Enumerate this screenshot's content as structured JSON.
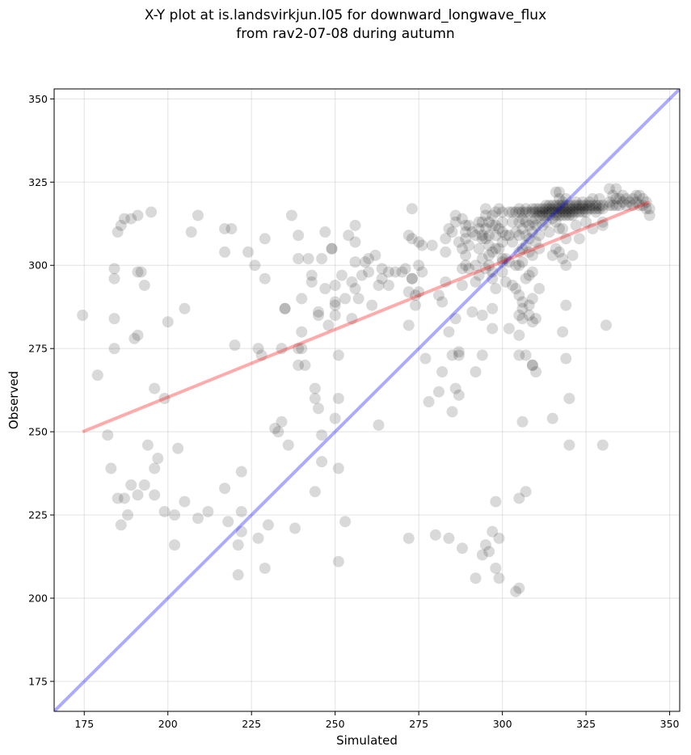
{
  "title_line1": "X-Y plot at is.landsvirkjun.l05 for downward_longwave_flux",
  "title_line2": "from rav2-07-08 during autumn",
  "chart_data": {
    "type": "scatter",
    "xlabel": "Simulated",
    "ylabel": "Observed",
    "xlim": [
      166,
      353
    ],
    "ylim": [
      166,
      353
    ],
    "xticks": [
      175,
      200,
      225,
      250,
      275,
      300,
      325,
      350
    ],
    "yticks": [
      175,
      200,
      225,
      250,
      275,
      300,
      325,
      350
    ],
    "grid": true,
    "point_color": "#000000",
    "identity_line": {
      "color": "#0000ff",
      "from": [
        166,
        166
      ],
      "to": [
        353,
        353
      ]
    },
    "fit_line": {
      "color": "#ff0000",
      "from": [
        174.5,
        250
      ],
      "to": [
        344,
        319
      ]
    },
    "points": [
      [
        174.5,
        285
      ],
      [
        179,
        267
      ],
      [
        182,
        249
      ],
      [
        183,
        239
      ],
      [
        184,
        299
      ],
      [
        184,
        296
      ],
      [
        184,
        284
      ],
      [
        184,
        275
      ],
      [
        185,
        310
      ],
      [
        185,
        230
      ],
      [
        186,
        312
      ],
      [
        186,
        222
      ],
      [
        187,
        314
      ],
      [
        187,
        230
      ],
      [
        188,
        225
      ],
      [
        189,
        234
      ],
      [
        189,
        314
      ],
      [
        190,
        278
      ],
      [
        191,
        279
      ],
      [
        191,
        298
      ],
      [
        191,
        315
      ],
      [
        191,
        231
      ],
      [
        192,
        298
      ],
      [
        193,
        294
      ],
      [
        193,
        234
      ],
      [
        194,
        246
      ],
      [
        195,
        316
      ],
      [
        196,
        263
      ],
      [
        196,
        239
      ],
      [
        196,
        231
      ],
      [
        197,
        242
      ],
      [
        199,
        260
      ],
      [
        199,
        226
      ],
      [
        200,
        283
      ],
      [
        202,
        216
      ],
      [
        202,
        225
      ],
      [
        203,
        245
      ],
      [
        205,
        287
      ],
      [
        205,
        229
      ],
      [
        207,
        310
      ],
      [
        209,
        224
      ],
      [
        209,
        315
      ],
      [
        212,
        226
      ],
      [
        217,
        304
      ],
      [
        217,
        311
      ],
      [
        217,
        233
      ],
      [
        218,
        223
      ],
      [
        219,
        311
      ],
      [
        220,
        276
      ],
      [
        221,
        207
      ],
      [
        221,
        216
      ],
      [
        222,
        220
      ],
      [
        222,
        226
      ],
      [
        222,
        238
      ],
      [
        224,
        304
      ],
      [
        226,
        300
      ],
      [
        227,
        275
      ],
      [
        227,
        218
      ],
      [
        228,
        273
      ],
      [
        229,
        308
      ],
      [
        229,
        296
      ],
      [
        229,
        209
      ],
      [
        230,
        222
      ],
      [
        232,
        251
      ],
      [
        233,
        250
      ],
      [
        234,
        253
      ],
      [
        234,
        275
      ],
      [
        235,
        287
      ],
      [
        235,
        287
      ],
      [
        236,
        246
      ],
      [
        237,
        315
      ],
      [
        238,
        221
      ],
      [
        239,
        302
      ],
      [
        239,
        309
      ],
      [
        239,
        275
      ],
      [
        239,
        270
      ],
      [
        240,
        290
      ],
      [
        240,
        280
      ],
      [
        240,
        275
      ],
      [
        241,
        270
      ],
      [
        242,
        302
      ],
      [
        243,
        295
      ],
      [
        243,
        297
      ],
      [
        244,
        263
      ],
      [
        244,
        260
      ],
      [
        244,
        232
      ],
      [
        245,
        286
      ],
      [
        245,
        285
      ],
      [
        245,
        257
      ],
      [
        246,
        302
      ],
      [
        246,
        249
      ],
      [
        246,
        241
      ],
      [
        247,
        293
      ],
      [
        247,
        310
      ],
      [
        248,
        282
      ],
      [
        249,
        305
      ],
      [
        249,
        305
      ],
      [
        250,
        294
      ],
      [
        250,
        289
      ],
      [
        250,
        288
      ],
      [
        250,
        285
      ],
      [
        250,
        254
      ],
      [
        251,
        273
      ],
      [
        251,
        239
      ],
      [
        251,
        211
      ],
      [
        251,
        260
      ],
      [
        252,
        297
      ],
      [
        253,
        223
      ],
      [
        253,
        290
      ],
      [
        254,
        309
      ],
      [
        255,
        295
      ],
      [
        255,
        284
      ],
      [
        256,
        312
      ],
      [
        256,
        307
      ],
      [
        256,
        301
      ],
      [
        256,
        293
      ],
      [
        257,
        290
      ],
      [
        258,
        297
      ],
      [
        259,
        301
      ],
      [
        260,
        302
      ],
      [
        260,
        298
      ],
      [
        261,
        288
      ],
      [
        262,
        303
      ],
      [
        263,
        294
      ],
      [
        263,
        252
      ],
      [
        264,
        296
      ],
      [
        264,
        299
      ],
      [
        266,
        294
      ],
      [
        266,
        298
      ],
      [
        268,
        298
      ],
      [
        270,
        298
      ],
      [
        271,
        299
      ],
      [
        272,
        218
      ],
      [
        272,
        309
      ],
      [
        272,
        292
      ],
      [
        272,
        282
      ],
      [
        273,
        308
      ],
      [
        273,
        317
      ],
      [
        273,
        296
      ],
      [
        273,
        296
      ],
      [
        274,
        291
      ],
      [
        274,
        288
      ],
      [
        275,
        292
      ],
      [
        275,
        300
      ],
      [
        275,
        307
      ],
      [
        276,
        298
      ],
      [
        276,
        306
      ],
      [
        277,
        272
      ],
      [
        278,
        259
      ],
      [
        279,
        306
      ],
      [
        280,
        219
      ],
      [
        281,
        291
      ],
      [
        281,
        262
      ],
      [
        282,
        289
      ],
      [
        282,
        268
      ],
      [
        283,
        308
      ],
      [
        283,
        304
      ],
      [
        283,
        295
      ],
      [
        284,
        311
      ],
      [
        284,
        280
      ],
      [
        284,
        218
      ],
      [
        285,
        256
      ],
      [
        285,
        310
      ],
      [
        285,
        273
      ],
      [
        286,
        315
      ],
      [
        286,
        313
      ],
      [
        286,
        284
      ],
      [
        286,
        263
      ],
      [
        287,
        274
      ],
      [
        287,
        307
      ],
      [
        287,
        273
      ],
      [
        287,
        261
      ],
      [
        288,
        215
      ],
      [
        288,
        299
      ],
      [
        288,
        294
      ],
      [
        288,
        314
      ],
      [
        288,
        305
      ],
      [
        289,
        312
      ],
      [
        289,
        310
      ],
      [
        289,
        308
      ],
      [
        289,
        303
      ],
      [
        289,
        300
      ],
      [
        290,
        299
      ],
      [
        290,
        306
      ],
      [
        290,
        312
      ],
      [
        291,
        286
      ],
      [
        291,
        310
      ],
      [
        292,
        300
      ],
      [
        292,
        309
      ],
      [
        292,
        295
      ],
      [
        292,
        268
      ],
      [
        292,
        206
      ],
      [
        293,
        313
      ],
      [
        293,
        311
      ],
      [
        293,
        305
      ],
      [
        293,
        297
      ],
      [
        294,
        313
      ],
      [
        294,
        309
      ],
      [
        294,
        308
      ],
      [
        294,
        302
      ],
      [
        294,
        285
      ],
      [
        294,
        273
      ],
      [
        294,
        213
      ],
      [
        295,
        317
      ],
      [
        295,
        315
      ],
      [
        295,
        311
      ],
      [
        295,
        308
      ],
      [
        295,
        299
      ],
      [
        295,
        216
      ],
      [
        296,
        313
      ],
      [
        296,
        309
      ],
      [
        296,
        306
      ],
      [
        296,
        303
      ],
      [
        296,
        300
      ],
      [
        296,
        214
      ],
      [
        297,
        315
      ],
      [
        297,
        312
      ],
      [
        297,
        304
      ],
      [
        297,
        296
      ],
      [
        297,
        287
      ],
      [
        297,
        281
      ],
      [
        297,
        220
      ],
      [
        297,
        298
      ],
      [
        298,
        316
      ],
      [
        298,
        312
      ],
      [
        298,
        309
      ],
      [
        298,
        305
      ],
      [
        298,
        293
      ],
      [
        298,
        229
      ],
      [
        298,
        209
      ],
      [
        299,
        317
      ],
      [
        299,
        311
      ],
      [
        299,
        305
      ],
      [
        299,
        218
      ],
      [
        299,
        206
      ],
      [
        300,
        316
      ],
      [
        300,
        313
      ],
      [
        300,
        310
      ],
      [
        300,
        307
      ],
      [
        300,
        301
      ],
      [
        300,
        302
      ],
      [
        300,
        298
      ],
      [
        301,
        309
      ],
      [
        301,
        302
      ],
      [
        301,
        295
      ],
      [
        302,
        316
      ],
      [
        302,
        309
      ],
      [
        302,
        301
      ],
      [
        302,
        281
      ],
      [
        303,
        316
      ],
      [
        303,
        313
      ],
      [
        303,
        307
      ],
      [
        303,
        294
      ],
      [
        304,
        316
      ],
      [
        304,
        310
      ],
      [
        304,
        300
      ],
      [
        304,
        293
      ],
      [
        304,
        202
      ],
      [
        305,
        317
      ],
      [
        305,
        316
      ],
      [
        305,
        313
      ],
      [
        305,
        309
      ],
      [
        305,
        304
      ],
      [
        305,
        300
      ],
      [
        305,
        291
      ],
      [
        305,
        285
      ],
      [
        305,
        279
      ],
      [
        305,
        273
      ],
      [
        305,
        230
      ],
      [
        305,
        203
      ],
      [
        306,
        316
      ],
      [
        306,
        314
      ],
      [
        306,
        311
      ],
      [
        306,
        305
      ],
      [
        306,
        301
      ],
      [
        306,
        289
      ],
      [
        306,
        287
      ],
      [
        306,
        284
      ],
      [
        306,
        253
      ],
      [
        307,
        317
      ],
      [
        307,
        316
      ],
      [
        307,
        313
      ],
      [
        307,
        309
      ],
      [
        307,
        306
      ],
      [
        307,
        296
      ],
      [
        307,
        273
      ],
      [
        307,
        232
      ],
      [
        308,
        316
      ],
      [
        308,
        312
      ],
      [
        308,
        308
      ],
      [
        308,
        304
      ],
      [
        308,
        297
      ],
      [
        308,
        288
      ],
      [
        308,
        285
      ],
      [
        309,
        317
      ],
      [
        309,
        316
      ],
      [
        309,
        313
      ],
      [
        309,
        310
      ],
      [
        309,
        303
      ],
      [
        309,
        298
      ],
      [
        309,
        290
      ],
      [
        309,
        283
      ],
      [
        309,
        270
      ],
      [
        309,
        270
      ],
      [
        310,
        317
      ],
      [
        310,
        316
      ],
      [
        310,
        314
      ],
      [
        310,
        312
      ],
      [
        310,
        307
      ],
      [
        310,
        284
      ],
      [
        310,
        268
      ],
      [
        311,
        317
      ],
      [
        311,
        316
      ],
      [
        311,
        315
      ],
      [
        311,
        309
      ],
      [
        311,
        305
      ],
      [
        311,
        293
      ],
      [
        312,
        317
      ],
      [
        312,
        316
      ],
      [
        312,
        315
      ],
      [
        312,
        312
      ],
      [
        313,
        318
      ],
      [
        313,
        317
      ],
      [
        313,
        316
      ],
      [
        313,
        315
      ],
      [
        313,
        313
      ],
      [
        314,
        318
      ],
      [
        314,
        317
      ],
      [
        314,
        316
      ],
      [
        314,
        315
      ],
      [
        314,
        310
      ],
      [
        315,
        318
      ],
      [
        315,
        317
      ],
      [
        315,
        316
      ],
      [
        315,
        314
      ],
      [
        315,
        303
      ],
      [
        315,
        254
      ],
      [
        316,
        322
      ],
      [
        316,
        318
      ],
      [
        316,
        317
      ],
      [
        316,
        316
      ],
      [
        316,
        315
      ],
      [
        316,
        313
      ],
      [
        316,
        305
      ],
      [
        317,
        322
      ],
      [
        317,
        320
      ],
      [
        317,
        318
      ],
      [
        317,
        317
      ],
      [
        317,
        316
      ],
      [
        317,
        315
      ],
      [
        317,
        311
      ],
      [
        317,
        304
      ],
      [
        318,
        319
      ],
      [
        318,
        318
      ],
      [
        318,
        317
      ],
      [
        318,
        316
      ],
      [
        318,
        315
      ],
      [
        318,
        311
      ],
      [
        318,
        302
      ],
      [
        318,
        280
      ],
      [
        319,
        320
      ],
      [
        319,
        318
      ],
      [
        319,
        317
      ],
      [
        319,
        316
      ],
      [
        319,
        315
      ],
      [
        319,
        308
      ],
      [
        319,
        300
      ],
      [
        319,
        288
      ],
      [
        319,
        272
      ],
      [
        320,
        318
      ],
      [
        320,
        317
      ],
      [
        320,
        316
      ],
      [
        320,
        315
      ],
      [
        320,
        246
      ],
      [
        320,
        260
      ],
      [
        321,
        318
      ],
      [
        321,
        317
      ],
      [
        321,
        316
      ],
      [
        321,
        315
      ],
      [
        321,
        303
      ],
      [
        322,
        319
      ],
      [
        322,
        318
      ],
      [
        322,
        317
      ],
      [
        322,
        316
      ],
      [
        322,
        312
      ],
      [
        323,
        318
      ],
      [
        323,
        317
      ],
      [
        323,
        316
      ],
      [
        323,
        308
      ],
      [
        324,
        319
      ],
      [
        324,
        318
      ],
      [
        324,
        317
      ],
      [
        324,
        316
      ],
      [
        325,
        318
      ],
      [
        325,
        317
      ],
      [
        325,
        316
      ],
      [
        325,
        313
      ],
      [
        326,
        319
      ],
      [
        326,
        318
      ],
      [
        326,
        317
      ],
      [
        327,
        320
      ],
      [
        327,
        318
      ],
      [
        327,
        317
      ],
      [
        327,
        311
      ],
      [
        328,
        318
      ],
      [
        328,
        317
      ],
      [
        328,
        316
      ],
      [
        329,
        320
      ],
      [
        329,
        318
      ],
      [
        329,
        317
      ],
      [
        330,
        318
      ],
      [
        330,
        317
      ],
      [
        330,
        313
      ],
      [
        330,
        312
      ],
      [
        330,
        246
      ],
      [
        331,
        282
      ],
      [
        332,
        323
      ],
      [
        332,
        319
      ],
      [
        332,
        318
      ],
      [
        333,
        321
      ],
      [
        333,
        318
      ],
      [
        334,
        323
      ],
      [
        334,
        320
      ],
      [
        334,
        318
      ],
      [
        335,
        320
      ],
      [
        335,
        318
      ],
      [
        336,
        321
      ],
      [
        336,
        319
      ],
      [
        337,
        320
      ],
      [
        337,
        318
      ],
      [
        338,
        319
      ],
      [
        339,
        320
      ],
      [
        339,
        318
      ],
      [
        340,
        321
      ],
      [
        340,
        319
      ],
      [
        341,
        321
      ],
      [
        341,
        318
      ],
      [
        342,
        320
      ],
      [
        342,
        318
      ],
      [
        343,
        319
      ],
      [
        343,
        317
      ],
      [
        344,
        317
      ],
      [
        344,
        315
      ]
    ]
  }
}
